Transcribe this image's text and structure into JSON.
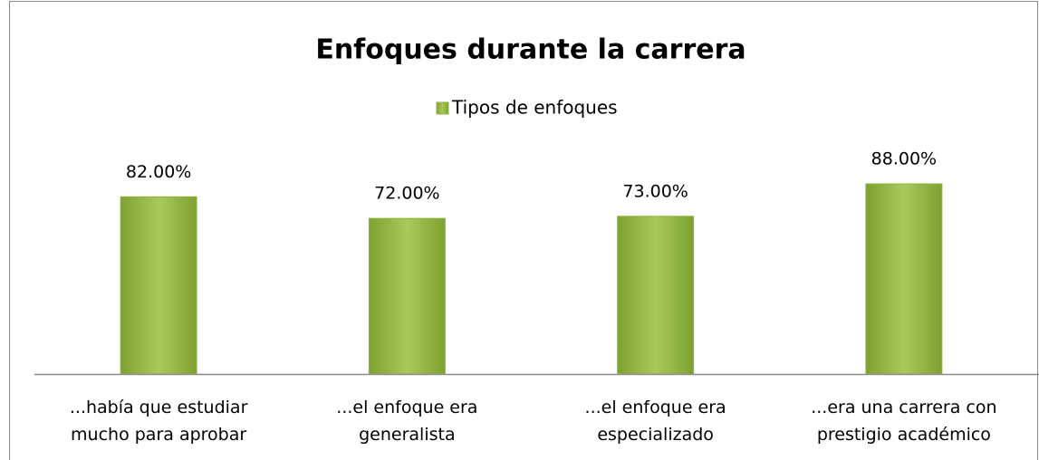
{
  "chart_data": {
    "type": "bar",
    "title": "Enfoques durante la carrera",
    "categories": [
      "...había que estudiar mucho para aprobar",
      "...el enfoque era generalista",
      "...el enfoque era especializado",
      "...era una carrera con prestigio académico"
    ],
    "series": [
      {
        "name": "Tipos de enfoques",
        "color": "#92b440",
        "values": [
          82,
          72,
          73,
          88
        ],
        "value_labels": [
          "82.00%",
          "72.00%",
          "73.00%",
          "88.00%"
        ]
      }
    ],
    "legend": "top"
  }
}
